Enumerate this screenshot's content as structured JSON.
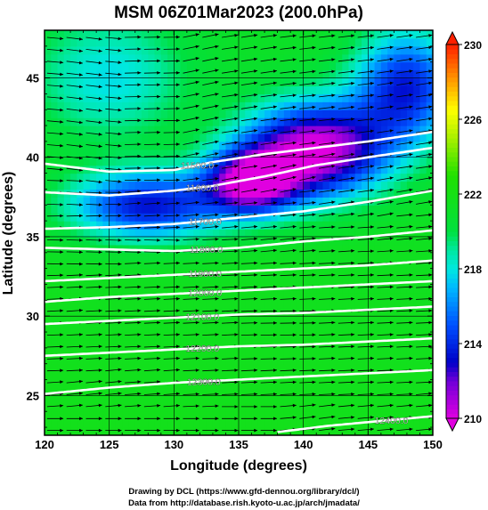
{
  "chart_data": {
    "type": "heatmap",
    "title": "MSM 06Z01Mar2023 (200.0hPa)",
    "xlabel": "Longitude (degrees)",
    "ylabel": "Latitude  (degrees)",
    "xlim": [
      120,
      150
    ],
    "ylim": [
      22.5,
      48
    ],
    "xticks": [
      120,
      125,
      130,
      135,
      140,
      145,
      150
    ],
    "xtick_labels": [
      "120",
      "125",
      "130",
      "135",
      "140",
      "145",
      "150"
    ],
    "yticks": [
      25,
      30,
      35,
      40,
      45
    ],
    "ytick_labels": [
      "25",
      "30",
      "35",
      "40",
      "45"
    ],
    "colorbar": {
      "min": 210,
      "max": 230,
      "ticks": [
        210,
        214,
        218,
        222,
        226,
        230
      ],
      "tick_labels": [
        "210",
        "214",
        "218",
        "222",
        "226",
        "230"
      ],
      "stops": [
        {
          "v": 210,
          "color": "#e000e0"
        },
        {
          "v": 212,
          "color": "#7000d8"
        },
        {
          "v": 213,
          "color": "#0000c8"
        },
        {
          "v": 215,
          "color": "#0050ff"
        },
        {
          "v": 217,
          "color": "#00b8ff"
        },
        {
          "v": 218,
          "color": "#00e8e0"
        },
        {
          "v": 219,
          "color": "#00e8a0"
        },
        {
          "v": 220,
          "color": "#00e040"
        },
        {
          "v": 223,
          "color": "#20e000"
        },
        {
          "v": 225,
          "color": "#a8f000"
        },
        {
          "v": 226.5,
          "color": "#ffff00"
        },
        {
          "v": 228,
          "color": "#ffa000"
        },
        {
          "v": 230,
          "color": "#ff2000"
        }
      ]
    },
    "contours": [
      {
        "label": "11500.0",
        "label_lon": 131.8,
        "points": [
          [
            120,
            39.6
          ],
          [
            125,
            39.1
          ],
          [
            130,
            39.2
          ],
          [
            133,
            39.7
          ],
          [
            137,
            40.2
          ],
          [
            141,
            40.6
          ],
          [
            145,
            41.0
          ],
          [
            150,
            41.6
          ]
        ]
      },
      {
        "label": "11600.0",
        "label_lon": 132.2,
        "points": [
          [
            120,
            37.8
          ],
          [
            125,
            37.6
          ],
          [
            130,
            37.9
          ],
          [
            133,
            38.2
          ],
          [
            137,
            38.8
          ],
          [
            141,
            39.5
          ],
          [
            145,
            40.0
          ],
          [
            150,
            40.6
          ]
        ]
      },
      {
        "label": "11700.0",
        "label_lon": 132.4,
        "points": [
          [
            120,
            35.5
          ],
          [
            125,
            35.6
          ],
          [
            130,
            35.8
          ],
          [
            135,
            36.2
          ],
          [
            140,
            36.6
          ],
          [
            145,
            37.2
          ],
          [
            150,
            37.9
          ]
        ]
      },
      {
        "label": "11800.0",
        "label_lon": 132.5,
        "points": [
          [
            120,
            34.3
          ],
          [
            125,
            34.2
          ],
          [
            130,
            34.1
          ],
          [
            135,
            34.3
          ],
          [
            140,
            34.7
          ],
          [
            145,
            35.0
          ],
          [
            150,
            35.4
          ]
        ]
      },
      {
        "label": "11900.0",
        "label_lon": 132.4,
        "points": [
          [
            120,
            32.2
          ],
          [
            125,
            32.4
          ],
          [
            130,
            32.6
          ],
          [
            135,
            32.8
          ],
          [
            140,
            33.0
          ],
          [
            145,
            33.2
          ],
          [
            150,
            33.5
          ]
        ]
      },
      {
        "label": "12000.0",
        "label_lon": 132.4,
        "points": [
          [
            120,
            30.9
          ],
          [
            125,
            31.2
          ],
          [
            130,
            31.4
          ],
          [
            135,
            31.6
          ],
          [
            140,
            31.8
          ],
          [
            145,
            32.0
          ],
          [
            150,
            32.2
          ]
        ]
      },
      {
        "label": "12100.0",
        "label_lon": 132.2,
        "points": [
          [
            120,
            29.5
          ],
          [
            125,
            29.7
          ],
          [
            130,
            29.9
          ],
          [
            135,
            30.1
          ],
          [
            140,
            30.2
          ],
          [
            145,
            30.4
          ],
          [
            150,
            30.6
          ]
        ]
      },
      {
        "label": "12200.0",
        "label_lon": 132.2,
        "points": [
          [
            120,
            27.5
          ],
          [
            125,
            27.7
          ],
          [
            130,
            27.9
          ],
          [
            135,
            28.1
          ],
          [
            140,
            28.2
          ],
          [
            145,
            28.4
          ],
          [
            150,
            28.6
          ]
        ]
      },
      {
        "label": "12300.0",
        "label_lon": 132.3,
        "points": [
          [
            120,
            25.1
          ],
          [
            125,
            25.5
          ],
          [
            130,
            25.8
          ],
          [
            135,
            26.0
          ],
          [
            140,
            26.2
          ],
          [
            145,
            26.4
          ],
          [
            150,
            26.6
          ]
        ]
      },
      {
        "label": "12400.0",
        "label_lon": 146.8,
        "points": [
          [
            138,
            22.7
          ],
          [
            142,
            23.1
          ],
          [
            146,
            23.4
          ],
          [
            150,
            23.7
          ]
        ]
      }
    ],
    "field_centers": [
      {
        "lon": 141,
        "lat": 40.5,
        "value": 210,
        "sx": 5.5,
        "sy": 3.0
      },
      {
        "lon": 136,
        "lat": 38.5,
        "value": 211,
        "sx": 3.5,
        "sy": 2.0
      },
      {
        "lon": 128,
        "lat": 37.0,
        "value": 213.5,
        "sx": 6.0,
        "sy": 2.2
      },
      {
        "lon": 125,
        "lat": 45.0,
        "value": 218,
        "sx": 6.0,
        "sy": 4.0
      },
      {
        "lon": 148,
        "lat": 44.5,
        "value": 214,
        "sx": 4.0,
        "sy": 3.5
      }
    ],
    "field_background": 221.5,
    "vectors": {
      "direction": "westerly",
      "lon_step": 1.5,
      "lat_step": 0.75
    }
  },
  "footer": {
    "line1": "Drawing by DCL (https://www.gfd-dennou.org/library/dcl/)",
    "line2": "Data from http://database.rish.kyoto-u.ac.jp/arch/jmadata/"
  }
}
